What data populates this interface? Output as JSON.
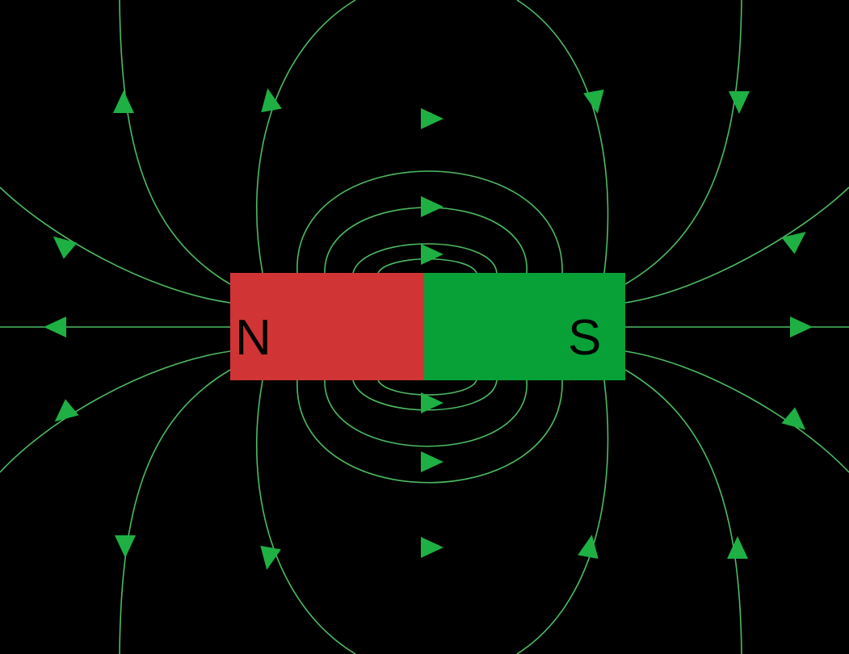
{
  "colors": {
    "background": "#000000",
    "field_line": "#4dbb62",
    "arrow": "#1fb043",
    "north_pole": "#d13434",
    "south_pole": "#08a138",
    "pole_text": "#000000"
  },
  "magnet": {
    "north_label": "N",
    "south_label": "S"
  }
}
